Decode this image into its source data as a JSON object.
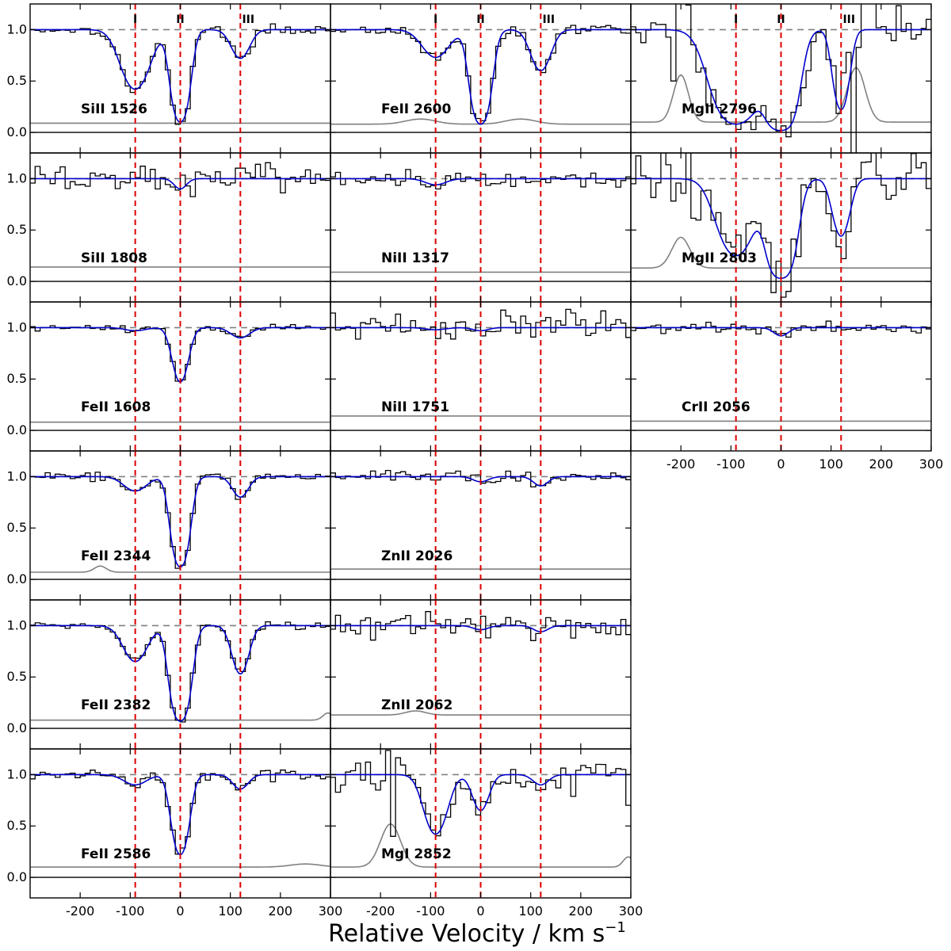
{
  "colors": {
    "data": "#000000",
    "model": "#0000cc",
    "error": "#808080",
    "component_marker": "#dd0000",
    "continuum": "#808080"
  },
  "chart_data": {
    "type": "line",
    "title": "",
    "xlabel": "Relative Velocity / km s",
    "xlabel_exponent": "−1",
    "xlim": [
      -300,
      300
    ],
    "ylim": [
      -0.2,
      1.25
    ],
    "x_ticks": [
      -200,
      -100,
      0,
      100,
      200,
      300
    ],
    "x_tick_labels": [
      "-200",
      "-100",
      "0",
      "100",
      "200",
      "300"
    ],
    "y_ticks": [
      0.0,
      0.5,
      1.0
    ],
    "y_tick_labels": [
      "0.0",
      "0.5",
      "1.0"
    ],
    "components": [
      {
        "label": "I",
        "velocity": -90
      },
      {
        "label": "II",
        "velocity": 0
      },
      {
        "label": "III",
        "velocity": 120
      }
    ],
    "series": [
      {
        "name": "SiII 1526",
        "row": 0,
        "col": 0,
        "x_axis_labels": false,
        "components_labeled": true,
        "noise": 0.25,
        "lines": [
          {
            "v": -90,
            "depth": 0.58,
            "sigma": 25
          },
          {
            "v": 0,
            "depth": 0.9,
            "sigma": 14
          },
          {
            "v": 120,
            "depth": 0.28,
            "sigma": 17
          }
        ],
        "error_level": 0.09,
        "error_bumps": []
      },
      {
        "name": "FeII 2600",
        "row": 0,
        "col": 1,
        "x_axis_labels": false,
        "components_labeled": true,
        "noise": 0.25,
        "lines": [
          {
            "v": -90,
            "depth": 0.27,
            "sigma": 25
          },
          {
            "v": 0,
            "depth": 0.92,
            "sigma": 15
          },
          {
            "v": 120,
            "depth": 0.4,
            "sigma": 18
          }
        ],
        "error_level": 0.08,
        "error_bumps": [
          {
            "v": -120,
            "h": 0.05,
            "w": 30
          },
          {
            "v": 80,
            "h": 0.05,
            "w": 30
          }
        ]
      },
      {
        "name": "MgII 2796",
        "row": 0,
        "col": 2,
        "x_axis_labels": false,
        "components_labeled": true,
        "noise": 1.0,
        "lines": [
          {
            "v": -90,
            "depth": 0.92,
            "sigma": 35
          },
          {
            "v": 0,
            "depth": 1.0,
            "sigma": 22
          },
          {
            "v": 120,
            "depth": 0.78,
            "sigma": 13
          }
        ],
        "error_level": 0.1,
        "error_bumps": [
          {
            "v": -200,
            "h": 0.46,
            "w": 15
          },
          {
            "v": 150,
            "h": 0.53,
            "w": 18
          }
        ]
      },
      {
        "name": "SiII 1808",
        "row": 1,
        "col": 0,
        "x_axis_labels": false,
        "components_labeled": false,
        "noise": 0.5,
        "lines": [
          {
            "v": 0,
            "depth": 0.1,
            "sigma": 12
          }
        ],
        "error_level": 0.14,
        "error_bumps": []
      },
      {
        "name": "NiII 1317",
        "row": 1,
        "col": 1,
        "x_axis_labels": false,
        "components_labeled": false,
        "noise": 0.4,
        "lines": [
          {
            "v": -90,
            "depth": 0.06,
            "sigma": 20
          }
        ],
        "error_level": 0.09,
        "error_bumps": []
      },
      {
        "name": "MgII 2803",
        "row": 1,
        "col": 2,
        "x_axis_labels": false,
        "components_labeled": false,
        "noise": 1.0,
        "lines": [
          {
            "v": -90,
            "depth": 0.75,
            "sigma": 30
          },
          {
            "v": 0,
            "depth": 0.97,
            "sigma": 20
          },
          {
            "v": 120,
            "depth": 0.56,
            "sigma": 15
          }
        ],
        "error_level": 0.13,
        "error_bumps": [
          {
            "v": -200,
            "h": 0.3,
            "w": 18
          }
        ]
      },
      {
        "name": "FeII 1608",
        "row": 2,
        "col": 0,
        "x_axis_labels": false,
        "components_labeled": false,
        "noise": 0.18,
        "lines": [
          {
            "v": -90,
            "depth": 0.03,
            "sigma": 20
          },
          {
            "v": 0,
            "depth": 0.53,
            "sigma": 14
          },
          {
            "v": 120,
            "depth": 0.1,
            "sigma": 18
          }
        ],
        "error_level": 0.08,
        "error_bumps": []
      },
      {
        "name": "NiII 1751",
        "row": 2,
        "col": 1,
        "x_axis_labels": false,
        "components_labeled": false,
        "noise": 0.55,
        "lines": [
          {
            "v": -90,
            "depth": 0.02,
            "sigma": 20
          },
          {
            "v": 0,
            "depth": 0.03,
            "sigma": 15
          }
        ],
        "error_level": 0.14,
        "error_bumps": []
      },
      {
        "name": "CrII 2056",
        "row": 2,
        "col": 2,
        "x_axis_labels": true,
        "components_labeled": false,
        "noise": 0.3,
        "lines": [
          {
            "v": 0,
            "depth": 0.08,
            "sigma": 14
          }
        ],
        "error_level": 0.09,
        "error_bumps": []
      },
      {
        "name": "FeII 2344",
        "row": 3,
        "col": 0,
        "x_axis_labels": false,
        "components_labeled": false,
        "noise": 0.25,
        "lines": [
          {
            "v": -90,
            "depth": 0.14,
            "sigma": 22
          },
          {
            "v": 0,
            "depth": 0.88,
            "sigma": 14
          },
          {
            "v": 120,
            "depth": 0.2,
            "sigma": 15
          }
        ],
        "error_level": 0.07,
        "error_bumps": [
          {
            "v": -160,
            "h": 0.06,
            "w": 12
          }
        ]
      },
      {
        "name": "ZnII 2026",
        "row": 3,
        "col": 1,
        "x_axis_labels": false,
        "components_labeled": false,
        "noise": 0.3,
        "lines": [
          {
            "v": 0,
            "depth": 0.05,
            "sigma": 15
          },
          {
            "v": 120,
            "depth": 0.09,
            "sigma": 14
          }
        ],
        "error_level": 0.1,
        "error_bumps": []
      },
      {
        "name": "FeII 2382",
        "row": 4,
        "col": 0,
        "x_axis_labels": false,
        "components_labeled": false,
        "noise": 0.2,
        "lines": [
          {
            "v": -90,
            "depth": 0.35,
            "sigma": 22
          },
          {
            "v": 0,
            "depth": 0.93,
            "sigma": 15
          },
          {
            "v": 120,
            "depth": 0.47,
            "sigma": 15
          }
        ],
        "error_level": 0.08,
        "error_bumps": [
          {
            "v": 295,
            "h": 0.07,
            "w": 10
          }
        ]
      },
      {
        "name": "ZnII 2062",
        "row": 4,
        "col": 1,
        "x_axis_labels": false,
        "components_labeled": false,
        "noise": 0.45,
        "lines": [
          {
            "v": 0,
            "depth": 0.04,
            "sigma": 15
          },
          {
            "v": 120,
            "depth": 0.06,
            "sigma": 14
          }
        ],
        "error_level": 0.13,
        "error_bumps": [
          {
            "v": -130,
            "h": 0.04,
            "w": 20
          }
        ]
      },
      {
        "name": "FeII 2586",
        "row": 5,
        "col": 0,
        "x_axis_labels": true,
        "components_labeled": false,
        "noise": 0.28,
        "lines": [
          {
            "v": -90,
            "depth": 0.1,
            "sigma": 22
          },
          {
            "v": 0,
            "depth": 0.78,
            "sigma": 14
          },
          {
            "v": 120,
            "depth": 0.14,
            "sigma": 15
          }
        ],
        "error_level": 0.1,
        "error_bumps": [
          {
            "v": 250,
            "h": 0.03,
            "w": 30
          }
        ]
      },
      {
        "name": "MgI 2852",
        "row": 5,
        "col": 1,
        "x_axis_labels": true,
        "components_labeled": false,
        "noise": 0.75,
        "lines": [
          {
            "v": -90,
            "depth": 0.58,
            "sigma": 20
          },
          {
            "v": 0,
            "depth": 0.35,
            "sigma": 15
          },
          {
            "v": 120,
            "depth": 0.1,
            "sigma": 15
          }
        ],
        "error_level": 0.1,
        "error_bumps": [
          {
            "v": -180,
            "h": 0.42,
            "w": 20
          },
          {
            "v": 295,
            "h": 0.1,
            "w": 10
          }
        ]
      }
    ]
  }
}
